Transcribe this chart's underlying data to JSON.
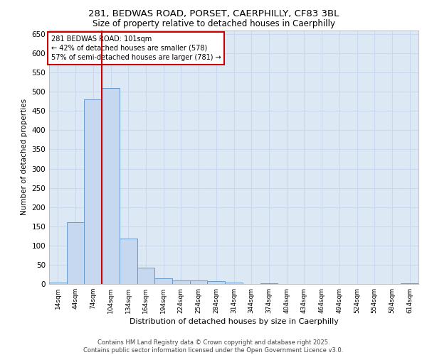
{
  "title_line1": "281, BEDWAS ROAD, PORSET, CAERPHILLY, CF83 3BL",
  "title_line2": "Size of property relative to detached houses in Caerphilly",
  "xlabel": "Distribution of detached houses by size in Caerphilly",
  "ylabel": "Number of detached properties",
  "footer_line1": "Contains HM Land Registry data © Crown copyright and database right 2025.",
  "footer_line2": "Contains public sector information licensed under the Open Government Licence v3.0.",
  "annotation_title": "281 BEDWAS ROAD: 101sqm",
  "annotation_line2": "← 42% of detached houses are smaller (578)",
  "annotation_line3": "57% of semi-detached houses are larger (781) →",
  "bar_color": "#c5d8f0",
  "bar_edge_color": "#6699cc",
  "vline_color": "#cc0000",
  "vline_x": 2.5,
  "background_color": "#dde8f5",
  "grid_color": "#c8d8ee",
  "categories": [
    "14sqm",
    "44sqm",
    "74sqm",
    "104sqm",
    "134sqm",
    "164sqm",
    "194sqm",
    "224sqm",
    "254sqm",
    "284sqm",
    "314sqm",
    "344sqm",
    "374sqm",
    "404sqm",
    "434sqm",
    "464sqm",
    "494sqm",
    "524sqm",
    "554sqm",
    "584sqm",
    "614sqm"
  ],
  "values": [
    3,
    160,
    480,
    510,
    118,
    42,
    15,
    10,
    9,
    8,
    3,
    0,
    2,
    0,
    0,
    0,
    0,
    0,
    0,
    0,
    2
  ],
  "ylim": [
    0,
    660
  ],
  "yticks": [
    0,
    50,
    100,
    150,
    200,
    250,
    300,
    350,
    400,
    450,
    500,
    550,
    600,
    650
  ]
}
